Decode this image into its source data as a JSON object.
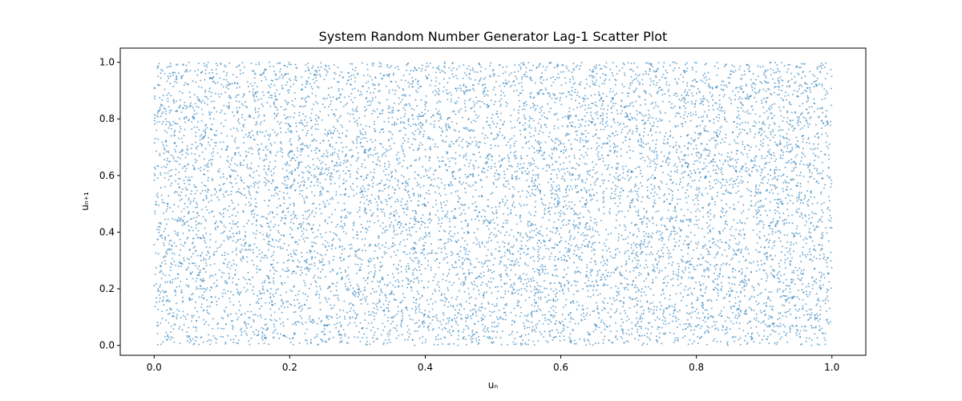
{
  "chart_data": {
    "type": "scatter",
    "title": "System Random Number Generator Lag-1 Scatter Plot",
    "xlabel": "uₙ",
    "ylabel": "uₙ₊₁",
    "xlim": [
      -0.05,
      1.05
    ],
    "ylim": [
      -0.035,
      1.05
    ],
    "xticks": [
      0.0,
      0.2,
      0.4,
      0.6,
      0.8,
      1.0
    ],
    "xtick_labels": [
      "0.0",
      "0.2",
      "0.4",
      "0.6",
      "0.8",
      "1.0"
    ],
    "yticks": [
      0.0,
      0.2,
      0.4,
      0.6,
      0.8,
      1.0
    ],
    "ytick_labels": [
      "0.0",
      "0.2",
      "0.4",
      "0.6",
      "0.8",
      "1.0"
    ],
    "grid": false,
    "legend": "none",
    "series": [
      {
        "color": "#1f77b4",
        "alpha": 0.6,
        "distribution": "uniform on [0,1] x [0,1]",
        "n_points": 10000
      }
    ]
  }
}
